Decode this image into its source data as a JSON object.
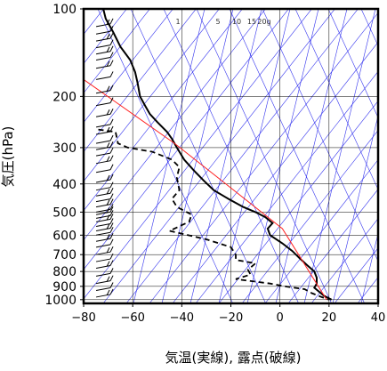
{
  "chart_data": {
    "type": "line",
    "xlabel": "気温(実線), 露点(破線)",
    "ylabel": "気圧(hPa)",
    "xlim": [
      -80,
      40
    ],
    "ylim": [
      1030,
      100
    ],
    "y_scale": "log",
    "x_ticks": [
      -80,
      -60,
      -40,
      -20,
      0,
      20,
      40
    ],
    "x_tick_labels": [
      "−80",
      "−60",
      "−40",
      "−20",
      "0",
      "20",
      "40"
    ],
    "y_ticks": [
      100,
      200,
      300,
      400,
      500,
      600,
      700,
      800,
      900,
      1000
    ],
    "y_tick_labels": [
      "100",
      "200",
      "300",
      "400",
      "500",
      "600",
      "700",
      "800",
      "900",
      "1000"
    ],
    "grid": true,
    "mixing_ratio_labels": [
      "1",
      "5",
      "10",
      "15",
      "20g"
    ],
    "colors": {
      "temperature": "#000000",
      "dewpoint": "#000000",
      "reference": "#ff2020",
      "mixing_lines": "#3333ee",
      "grid": "#000000"
    },
    "series": [
      {
        "key": "temperature",
        "style": "solid",
        "points": [
          [
            -72,
            100
          ],
          [
            -71,
            108
          ],
          [
            -68,
            120
          ],
          [
            -65,
            135
          ],
          [
            -61,
            150
          ],
          [
            -59,
            165
          ],
          [
            -58,
            180
          ],
          [
            -57,
            200
          ],
          [
            -55,
            215
          ],
          [
            -53,
            230
          ],
          [
            -50,
            245
          ],
          [
            -46,
            265
          ],
          [
            -44,
            280
          ],
          [
            -42,
            300
          ],
          [
            -39,
            330
          ],
          [
            -35,
            360
          ],
          [
            -31,
            390
          ],
          [
            -27,
            420
          ],
          [
            -21,
            450
          ],
          [
            -15,
            480
          ],
          [
            -10,
            500
          ],
          [
            -6,
            520
          ],
          [
            -3,
            545
          ],
          [
            -5,
            570
          ],
          [
            -4,
            600
          ],
          [
            1,
            640
          ],
          [
            5,
            680
          ],
          [
            8,
            720
          ],
          [
            11,
            760
          ],
          [
            14,
            800
          ],
          [
            15,
            840
          ],
          [
            15,
            880
          ],
          [
            14,
            910
          ],
          [
            16,
            940
          ],
          [
            18,
            970
          ],
          [
            21,
            1000
          ]
        ]
      },
      {
        "key": "dewpoint",
        "style": "dashed",
        "points": [
          [
            -74,
            260
          ],
          [
            -67,
            265
          ],
          [
            -66,
            290
          ],
          [
            -62,
            300
          ],
          [
            -52,
            310
          ],
          [
            -44,
            330
          ],
          [
            -41,
            350
          ],
          [
            -42,
            380
          ],
          [
            -41,
            420
          ],
          [
            -44,
            450
          ],
          [
            -42,
            480
          ],
          [
            -36,
            510
          ],
          [
            -37,
            540
          ],
          [
            -45,
            580
          ],
          [
            -30,
            620
          ],
          [
            -20,
            660
          ],
          [
            -18,
            700
          ],
          [
            -18,
            730
          ],
          [
            -10,
            750
          ],
          [
            -13,
            790
          ],
          [
            -12,
            820
          ],
          [
            -18,
            850
          ],
          [
            -4,
            880
          ],
          [
            2,
            900
          ],
          [
            10,
            920
          ],
          [
            13,
            950
          ],
          [
            17,
            980
          ],
          [
            20,
            1000
          ]
        ]
      },
      {
        "key": "reference",
        "style": "solid",
        "points": [
          [
            -80,
            175
          ],
          [
            -43,
            290
          ],
          [
            1,
            570
          ],
          [
            19,
            1000
          ]
        ]
      }
    ],
    "wind_barbs": {
      "x": -72,
      "pressures": [
        115,
        122,
        129,
        136,
        143,
        150,
        160,
        175,
        195,
        215,
        235,
        255,
        270,
        290,
        305,
        320,
        340,
        365,
        395,
        420,
        440,
        460,
        480,
        500,
        510,
        525,
        540,
        560,
        580,
        600,
        630,
        660,
        700,
        740,
        780,
        830,
        880,
        930,
        980
      ]
    }
  }
}
